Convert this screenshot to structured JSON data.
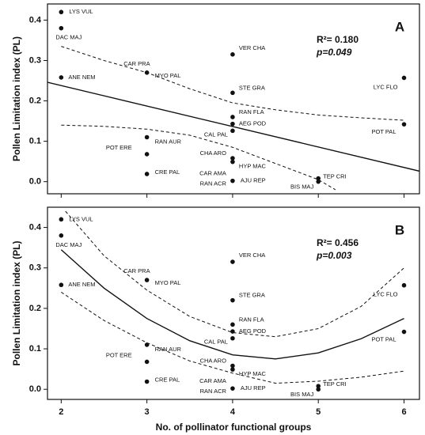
{
  "chart_data": [
    {
      "type": "scatter",
      "title": "A",
      "r2": "R²= 0.180",
      "p": "p=0.049",
      "ylabel": "Pollen Limitation index (PL)",
      "xlim": [
        1.84,
        6.18
      ],
      "ylim": [
        -0.03,
        0.44
      ],
      "xticks": [
        2,
        3,
        4,
        5,
        6
      ],
      "yticks": [
        {
          "value": 0,
          "label": "0.0"
        },
        0.1,
        0.2,
        0.3,
        0.4
      ],
      "color": "#111111",
      "points": {
        "x": [
          2,
          2,
          2,
          3,
          3,
          3,
          3,
          4,
          4,
          4,
          4,
          4,
          4,
          4,
          4,
          5,
          5,
          6,
          6
        ],
        "values": [
          0.42,
          0.38,
          0.258,
          0.27,
          0.11,
          0.068,
          0.019,
          0.315,
          0.22,
          0.16,
          0.143,
          0.126,
          0.058,
          0.049,
          0.002,
          0.008,
          0.0,
          0.257,
          0.142
        ],
        "labels": [
          [
            "LYS VUL"
          ],
          [
            "DAC MAJ"
          ],
          [
            "ANE NEM"
          ],
          [
            "CAR PRA",
            "MYO PAL"
          ],
          [
            "RAN AUR"
          ],
          [
            "POT ERE"
          ],
          [
            "CRE PAL"
          ],
          [
            "VER CHA"
          ],
          [
            "STE GRA"
          ],
          [
            "RAN FLA"
          ],
          [
            "AEG POD"
          ],
          [
            "CAL PAL"
          ],
          [
            "CHA ARO"
          ],
          [
            "HYP MAC"
          ],
          [
            "CAR AMA",
            "RAN ACR",
            "AJU REP"
          ],
          [
            "TEP CRI"
          ],
          [
            "BIS MAJ"
          ],
          [
            "LYC FLO"
          ],
          [
            "POT PAL"
          ]
        ]
      },
      "fit": {
        "x": [
          1.84,
          6.18
        ],
        "values": [
          0.246,
          0.026
        ]
      },
      "ci_upper": {
        "x": [
          2,
          2.5,
          3,
          3.5,
          4,
          4.5,
          5,
          5.5,
          6
        ],
        "values": [
          0.335,
          0.3,
          0.27,
          0.23,
          0.195,
          0.178,
          0.165,
          0.158,
          0.152
        ]
      },
      "ci_lower": {
        "x": [
          2,
          2.5,
          3,
          3.5,
          4,
          4.5,
          5,
          5.2
        ],
        "values": [
          0.14,
          0.137,
          0.13,
          0.115,
          0.085,
          0.045,
          0.005,
          -0.02
        ]
      }
    },
    {
      "type": "scatter",
      "title": "B",
      "r2": "R²= 0.456",
      "p": "p=0.003",
      "ylabel": "Pollen Limitation index (PL)",
      "xlabel": "No. of pollinator functional groups",
      "xlim": [
        1.84,
        6.18
      ],
      "ylim": [
        -0.025,
        0.45
      ],
      "xticks": [
        2,
        3,
        4,
        5,
        6
      ],
      "yticks": [
        {
          "value": 0,
          "label": "0.0"
        },
        0.1,
        0.2,
        0.3,
        0.4
      ],
      "color": "#111111",
      "points": {
        "x": [
          2,
          2,
          2,
          3,
          3,
          3,
          3,
          4,
          4,
          4,
          4,
          4,
          4,
          4,
          4,
          5,
          5,
          6,
          6
        ],
        "values": [
          0.42,
          0.38,
          0.258,
          0.27,
          0.11,
          0.068,
          0.019,
          0.315,
          0.22,
          0.16,
          0.143,
          0.126,
          0.058,
          0.049,
          0.002,
          0.008,
          0.0,
          0.257,
          0.142
        ],
        "labels": [
          [
            "LYS VUL"
          ],
          [
            "DAC MAJ"
          ],
          [
            "ANE NEM"
          ],
          [
            "CAR PRA",
            "MYO PAL"
          ],
          [
            "RAN AUR"
          ],
          [
            "POT ERE"
          ],
          [
            "CRE PAL"
          ],
          [
            "VER CHA"
          ],
          [
            "STE GRA"
          ],
          [
            "RAN FLA"
          ],
          [
            "AEG POD"
          ],
          [
            "CAL PAL"
          ],
          [
            "CHA ARO"
          ],
          [
            "HYP MAC"
          ],
          [
            "CAR AMA",
            "RAN ACR",
            "AJU REP"
          ],
          [
            "TEP CRI"
          ],
          [
            "BIS MAJ"
          ],
          [
            "LYC FLO"
          ],
          [
            "POT PAL"
          ]
        ]
      },
      "fit": {
        "x": [
          2,
          2.5,
          3,
          3.5,
          4,
          4.5,
          5,
          5.5,
          6
        ],
        "values": [
          0.345,
          0.25,
          0.175,
          0.12,
          0.085,
          0.075,
          0.09,
          0.125,
          0.175
        ]
      },
      "ci_upper": {
        "x": [
          2.05,
          2.5,
          3,
          3.5,
          4,
          4.5,
          5,
          5.5,
          6
        ],
        "values": [
          0.44,
          0.33,
          0.245,
          0.18,
          0.14,
          0.13,
          0.15,
          0.205,
          0.3
        ]
      },
      "ci_lower": {
        "x": [
          2,
          2.5,
          3,
          3.5,
          4,
          4.5,
          5,
          5.5,
          6
        ],
        "values": [
          0.24,
          0.17,
          0.115,
          0.07,
          0.04,
          0.015,
          0.02,
          0.03,
          0.045
        ]
      }
    }
  ]
}
